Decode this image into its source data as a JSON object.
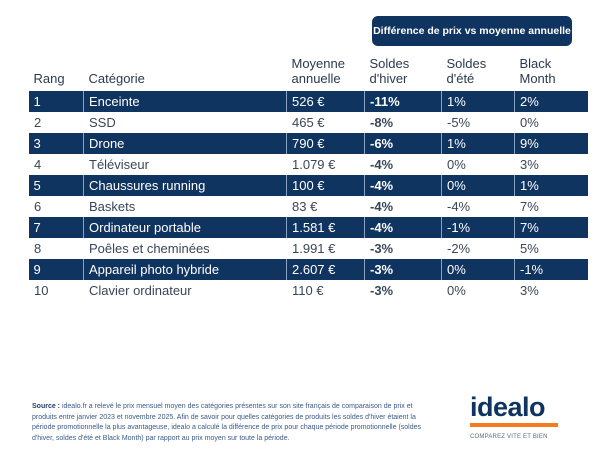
{
  "badge": "Différence de prix vs moyenne annuelle",
  "table": {
    "headers": {
      "rang": "Rang",
      "categorie": "Catégorie",
      "moyenne": [
        "Moyenne",
        "annuelle"
      ],
      "hiver": [
        "Soldes",
        "d'hiver"
      ],
      "ete": [
        "Soldes",
        "d'été"
      ],
      "black": [
        "Black",
        "Month"
      ]
    },
    "rows": [
      {
        "rang": "1",
        "categorie": "Enceinte",
        "moyenne": "526 €",
        "hiver": "-11%",
        "ete": "1%",
        "black": "2%"
      },
      {
        "rang": "2",
        "categorie": "SSD",
        "moyenne": "465 €",
        "hiver": "-8%",
        "ete": "-5%",
        "black": "0%"
      },
      {
        "rang": "3",
        "categorie": "Drone",
        "moyenne": "790 €",
        "hiver": "-6%",
        "ete": "1%",
        "black": "9%"
      },
      {
        "rang": "4",
        "categorie": "Téléviseur",
        "moyenne": "1.079 €",
        "hiver": "-4%",
        "ete": "0%",
        "black": "3%"
      },
      {
        "rang": "5",
        "categorie": "Chaussures running",
        "moyenne": "100 €",
        "hiver": "-4%",
        "ete": "0%",
        "black": "1%"
      },
      {
        "rang": "6",
        "categorie": "Baskets",
        "moyenne": "83 €",
        "hiver": "-4%",
        "ete": "-4%",
        "black": "7%"
      },
      {
        "rang": "7",
        "categorie": "Ordinateur portable",
        "moyenne": "1.581 €",
        "hiver": "-4%",
        "ete": "-1%",
        "black": "7%"
      },
      {
        "rang": "8",
        "categorie": "Poêles et cheminées",
        "moyenne": "1.991 €",
        "hiver": "-3%",
        "ete": "-2%",
        "black": "5%"
      },
      {
        "rang": "9",
        "categorie": "Appareil photo hybride",
        "moyenne": "2.607 €",
        "hiver": "-3%",
        "ete": "0%",
        "black": "-1%"
      },
      {
        "rang": "10",
        "categorie": "Clavier ordinateur",
        "moyenne": "110 €",
        "hiver": "-3%",
        "ete": "0%",
        "black": "3%"
      }
    ]
  },
  "source": {
    "label": "Source :",
    "text": " idealo.fr a relevé le prix mensuel moyen des catégories présentes sur son site français de comparaison de prix et produits entre janvier 2023 et novembre 2025. Afin de savoir pour quelles catégories de produits les soldes d'hiver étaient la période promotionnelle la plus avantageuse, idealo a calculé la différence de prix pour chaque période promotionnelle (soldes d'hiver, soldes d'été et Black Month) par rapport au prix moyen sur toute la période."
  },
  "logo": {
    "name": "idealo",
    "tagline": "COMPAREZ VITE ET BIEN"
  },
  "colors": {
    "navy": "#0f3460",
    "orange": "#f47b20"
  }
}
